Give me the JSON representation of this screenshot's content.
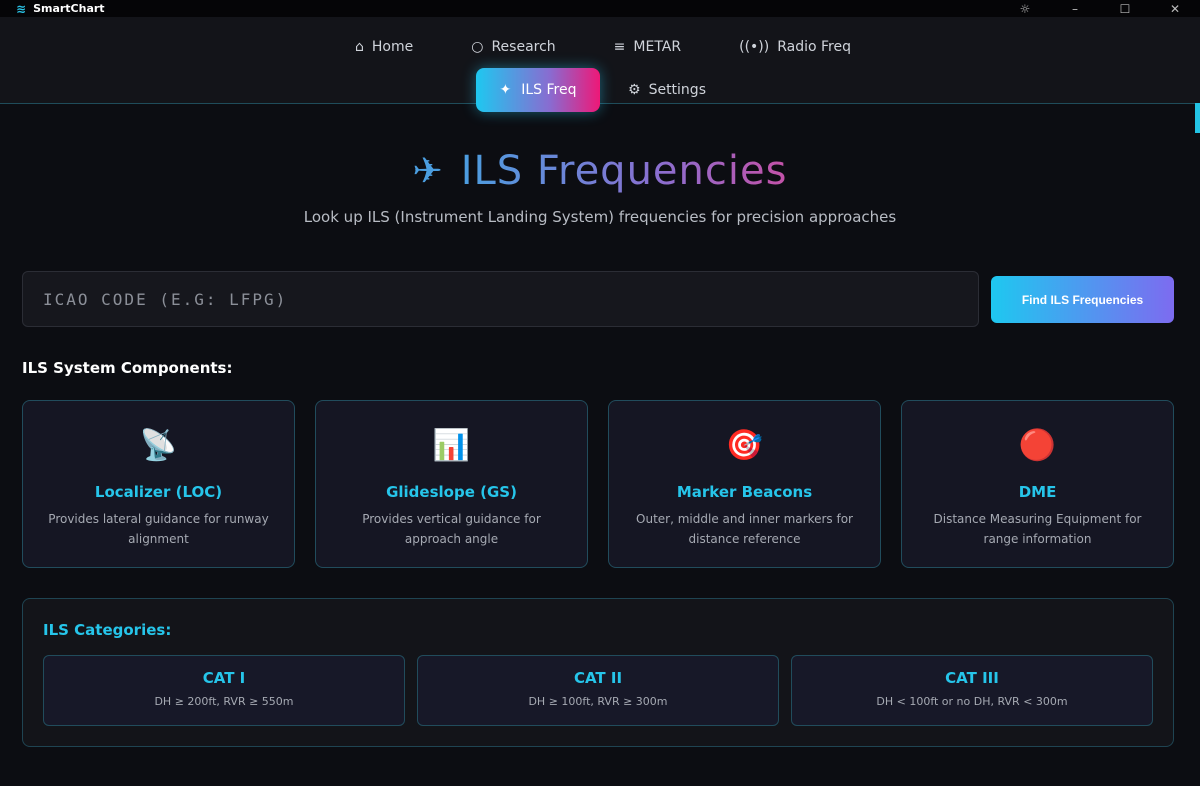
{
  "app": {
    "title": "SmartChart"
  },
  "nav": {
    "items": [
      {
        "label": "Home",
        "icon": "home-icon"
      },
      {
        "label": "Research",
        "icon": "search-icon"
      },
      {
        "label": "METAR",
        "icon": "list-icon"
      },
      {
        "label": "Radio Freq",
        "icon": "radio-icon"
      }
    ],
    "active": {
      "label": "ILS Freq",
      "icon": "sparkle-icon"
    },
    "settings": {
      "label": "Settings",
      "icon": "gear-icon"
    }
  },
  "hero": {
    "title": "ILS Frequencies",
    "subtitle": "Look up ILS (Instrument Landing System) frequencies for precision approaches"
  },
  "search": {
    "placeholder": "ICAO CODE (E.G: LFPG)",
    "button": "Find ILS Frequencies"
  },
  "components": {
    "heading": "ILS System Components:",
    "items": [
      {
        "icon": "📡",
        "title": "Localizer (LOC)",
        "desc": "Provides lateral guidance for runway alignment"
      },
      {
        "icon": "📊",
        "title": "Glideslope (GS)",
        "desc": "Provides vertical guidance for approach angle"
      },
      {
        "icon": "🎯",
        "title": "Marker Beacons",
        "desc": "Outer, middle and inner markers for distance reference"
      },
      {
        "icon": "🔴",
        "title": "DME",
        "desc": "Distance Measuring Equipment for range information"
      }
    ]
  },
  "categories": {
    "heading": "ILS Categories:",
    "items": [
      {
        "name": "CAT I",
        "desc": "DH ≥ 200ft, RVR ≥ 550m"
      },
      {
        "name": "CAT II",
        "desc": "DH ≥ 100ft, RVR ≥ 300m"
      },
      {
        "name": "CAT III",
        "desc": "DH < 100ft or no DH, RVR < 300m"
      }
    ]
  },
  "colors": {
    "accent": "#26c5ea",
    "pink": "#ee1877"
  }
}
